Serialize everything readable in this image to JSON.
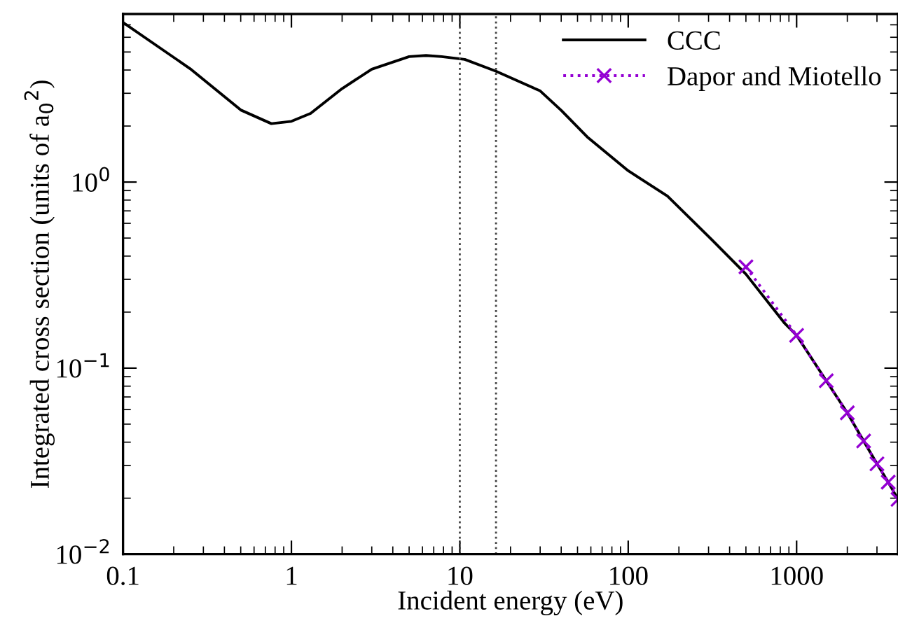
{
  "chart_data": {
    "type": "line",
    "xlabel": "Incident energy (eV)",
    "ylabel": "Integrated cross section (units of a$_{0}$$^{2}$)",
    "log": "xy",
    "xlim": [
      0.1,
      4000
    ],
    "xticks": [
      0.1,
      1,
      10,
      100,
      1000
    ],
    "ylim": [
      0.01,
      8
    ],
    "yticks": [
      {
        "value": 0.01,
        "label": "10$^{−2}$"
      },
      {
        "value": 0.1,
        "label": "10$^{−1}$"
      },
      {
        "value": 1,
        "label": "10$^{0}$"
      }
    ],
    "grid": false,
    "legend": "top right",
    "ref_lines": [
      {
        "axis": "x",
        "value": 10,
        "color": "#444444",
        "line_style": "dotted"
      },
      {
        "axis": "x",
        "value": 16.4,
        "color": "#444444",
        "line_style": "dotted"
      }
    ],
    "series": [
      {
        "name": "CCC",
        "color": "#000000",
        "marker": "none",
        "line_style": "solid",
        "x": [
          0.1,
          0.25,
          0.5,
          0.76,
          1.0,
          1.3,
          2,
          3,
          5,
          6.3,
          7.8,
          10.7,
          16.4,
          30,
          40,
          57,
          100,
          171,
          300,
          500,
          850,
          1000,
          1500,
          2000,
          2500,
          3000,
          3500,
          4000
        ],
        "values": [
          7.2,
          4.07,
          2.44,
          2.06,
          2.12,
          2.34,
          3.18,
          4.04,
          4.72,
          4.79,
          4.72,
          4.56,
          3.94,
          3.09,
          2.43,
          1.75,
          1.15,
          0.84,
          0.51,
          0.32,
          0.174,
          0.15,
          0.0855,
          0.0575,
          0.0406,
          0.0306,
          0.0244,
          0.0197
        ]
      },
      {
        "name": "Dapor and Miotello",
        "color": "#9400d3",
        "marker": "cross",
        "line_style": "dotted",
        "x": [
          500,
          1000,
          1500,
          2000,
          2500,
          3000,
          3500,
          4000
        ],
        "values": [
          0.35,
          0.15,
          0.0855,
          0.0575,
          0.0406,
          0.0306,
          0.0244,
          0.0197
        ]
      }
    ]
  }
}
